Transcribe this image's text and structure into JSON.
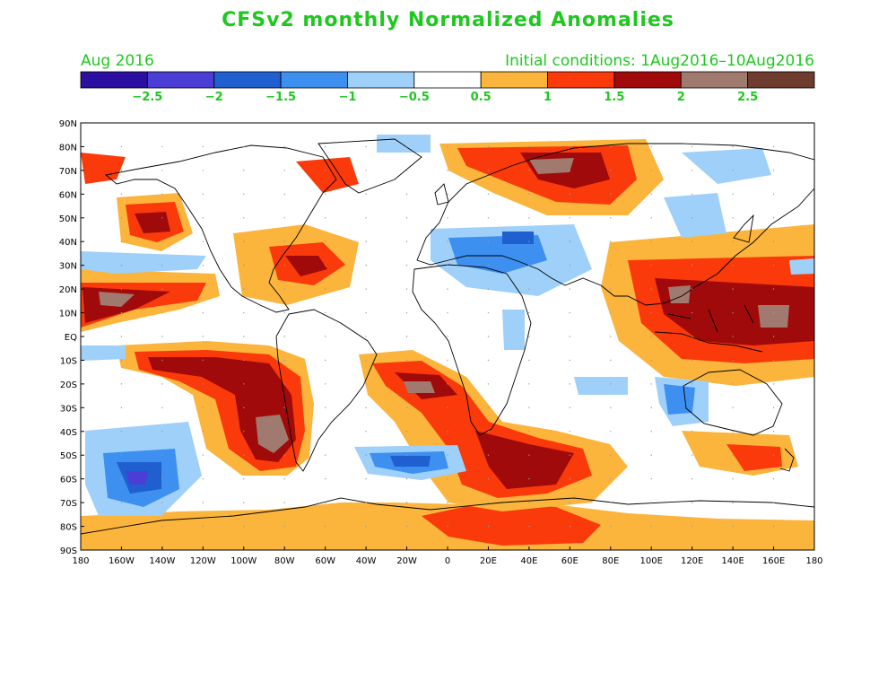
{
  "title": "CFSv2 monthly Normalized Anomalies",
  "period_label": "Aug 2016",
  "init_label": "Initial conditions: 1Aug2016–10Aug2016",
  "colorbar": {
    "colors": [
      "#2a0fa0",
      "#4a3ed6",
      "#1f5fd0",
      "#3d8ff0",
      "#9fd0fa",
      "#ffffff",
      "#fbb43c",
      "#fa3a0a",
      "#a00a0a",
      "#a07a6e",
      "#6e3c2e"
    ],
    "labels": [
      "−2.5",
      "−2",
      "−1.5",
      "−1",
      "−0.5",
      "0.5",
      "1",
      "1.5",
      "2",
      "2.5"
    ]
  },
  "axes": {
    "lat_labels": [
      "90N",
      "80N",
      "70N",
      "60N",
      "50N",
      "40N",
      "30N",
      "20N",
      "10N",
      "EQ",
      "10S",
      "20S",
      "30S",
      "40S",
      "50S",
      "60S",
      "70S",
      "80S",
      "90S"
    ],
    "lon_labels": [
      "180",
      "160W",
      "140W",
      "120W",
      "100W",
      "80W",
      "60W",
      "40W",
      "20W",
      "0",
      "20E",
      "40E",
      "60E",
      "80E",
      "100E",
      "120E",
      "140E",
      "160E",
      "180"
    ]
  },
  "colors": {
    "label_green": "#1ec81e",
    "coast": "#000000",
    "grid_dot": "#9a9a9a"
  }
}
